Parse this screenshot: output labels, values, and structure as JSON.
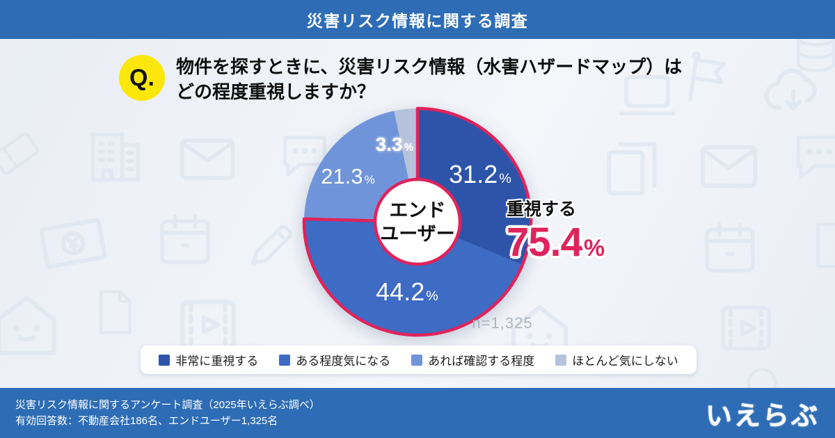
{
  "header": {
    "title": "災害リスク情報に関する調査",
    "bg_color": "#2e6db6"
  },
  "question": {
    "badge": "Q.",
    "badge_color": "#fbe70b",
    "line1": "物件を探すときに、災害リスク情報（水害ハザードマップ）は",
    "line2": "どの程度重視しますか？"
  },
  "chart_data": {
    "type": "pie",
    "title": "物件を探すときに、災害リスク情報（水害ハザードマップ）はどの程度重視しますか？",
    "categories": [
      "非常に重視する",
      "ある程度気になる",
      "あれば確認する程度",
      "ほとんど気にしない"
    ],
    "values": [
      31.2,
      44.2,
      21.3,
      3.3
    ],
    "unit": "%",
    "colors": [
      "#2d54a8",
      "#3e6bc3",
      "#7094da",
      "#b6c2dc"
    ],
    "start_angle_deg": 0,
    "direction": "clockwise",
    "donut_hole": true,
    "center_label": {
      "line1": "エンド",
      "line2": "ユーザー"
    },
    "sample_label": "n=1,325",
    "highlight": {
      "label": "重視する",
      "value": "75.4",
      "unit": "%",
      "color": "#e0235c"
    },
    "legend_position": "bottom"
  },
  "footer": {
    "line1": "災害リスク情報に関するアンケート調査（2025年いえらぶ調べ）",
    "line2": "有効回答数：不動産会社186名、エンドユーザー1,325名",
    "logo": "いえらぶ",
    "bg_color": "#2e6db6"
  }
}
